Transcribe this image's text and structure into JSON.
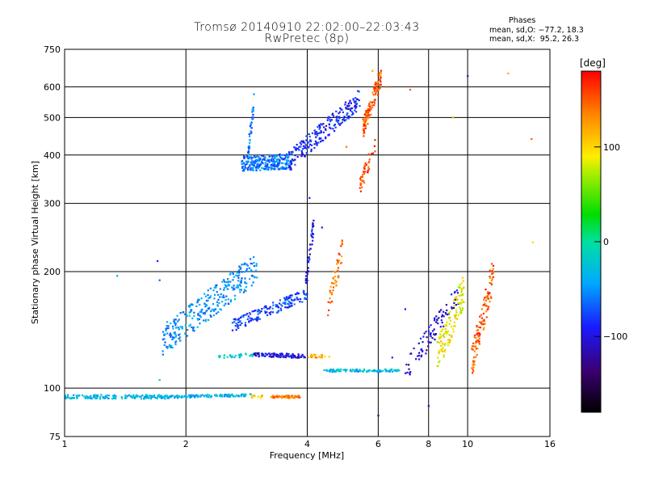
{
  "header": {
    "title": "Tromsø 20140910 22:02:00–22:03:43",
    "subtitle": "RwPretec (8p)"
  },
  "phases_box": {
    "title": "Phases",
    "line1": "mean, sd,O: −77.2, 18.3",
    "line2": "mean, sd,X:  95.2, 26.3"
  },
  "colorbar": {
    "label": "[deg]",
    "ticks": [
      "100",
      "0",
      "−100"
    ],
    "tick_values": [
      100,
      0,
      -100
    ],
    "range": [
      -180,
      180
    ]
  },
  "chart_data": {
    "type": "scatter",
    "title": "Tromsø 20140910 22:02:00–22:03:43",
    "subtitle": "RwPretec (8p)",
    "xlabel": "Frequency [MHz]",
    "ylabel": "Stationary phase Virtual Height [km]",
    "x_scale": "log",
    "y_scale": "log",
    "xlim": [
      1,
      16
    ],
    "ylim": [
      75,
      750
    ],
    "x_ticks": [
      1,
      2,
      4,
      6,
      8,
      10,
      16
    ],
    "x_tick_labels": [
      "1",
      "2",
      "4",
      "6",
      "8",
      "10",
      "16"
    ],
    "y_ticks": [
      75,
      100,
      200,
      300,
      400,
      500,
      600,
      750
    ],
    "y_tick_labels": [
      "75",
      "100",
      "200",
      "300",
      "400",
      "500",
      "600",
      "750"
    ],
    "grid": true,
    "color_scale": "rainbow phase [deg]",
    "traces": [
      {
        "f0": 1.0,
        "f1": 1.8,
        "h0": 95,
        "h1": 95,
        "curv": 0,
        "phase": -30,
        "n": 170,
        "spread": 0.012
      },
      {
        "f0": 1.8,
        "f1": 2.9,
        "h0": 95,
        "h1": 96,
        "curv": 0,
        "phase": -35,
        "n": 120,
        "spread": 0.008
      },
      {
        "f0": 2.9,
        "f1": 3.1,
        "h0": 95,
        "h1": 95,
        "curv": 0,
        "phase": 110,
        "n": 12,
        "spread": 0.008
      },
      {
        "f0": 3.25,
        "f1": 3.85,
        "h0": 95,
        "h1": 95,
        "curv": 0,
        "phase": 140,
        "n": 60,
        "spread": 0.008
      },
      {
        "f0": 1.75,
        "f1": 3.0,
        "h0": 133,
        "h1": 205,
        "curv": 0,
        "phase": -50,
        "n": 300,
        "spread": 0.09
      },
      {
        "f0": 2.6,
        "f1": 4.0,
        "h0": 145,
        "h1": 175,
        "curv": 0,
        "phase": -80,
        "n": 160,
        "spread": 0.035
      },
      {
        "f0": 3.95,
        "f1": 4.15,
        "h0": 180,
        "h1": 265,
        "curv": 0,
        "phase": -95,
        "n": 40,
        "spread": 0.06
      },
      {
        "f0": 4.5,
        "f1": 4.9,
        "h0": 160,
        "h1": 230,
        "curv": 0,
        "phase": 140,
        "n": 50,
        "spread": 0.07
      },
      {
        "f0": 2.35,
        "f1": 2.95,
        "h0": 120,
        "h1": 122,
        "curv": 0,
        "phase": -20,
        "n": 30,
        "spread": 0.01
      },
      {
        "f0": 2.95,
        "f1": 3.95,
        "h0": 122,
        "h1": 121,
        "curv": 0,
        "phase": -100,
        "n": 100,
        "spread": 0.012
      },
      {
        "f0": 4.0,
        "f1": 4.6,
        "h0": 121,
        "h1": 121,
        "curv": 0,
        "phase": 120,
        "n": 25,
        "spread": 0.01
      },
      {
        "f0": 4.4,
        "f1": 6.8,
        "h0": 111,
        "h1": 111,
        "curv": 0,
        "phase": -30,
        "n": 110,
        "spread": 0.008
      },
      {
        "f0": 2.75,
        "f1": 3.6,
        "h0": 380,
        "h1": 385,
        "curv": 0,
        "phase": -60,
        "n": 260,
        "spread": 0.045
      },
      {
        "f0": 3.6,
        "f1": 5.4,
        "h0": 385,
        "h1": 560,
        "curv": 0,
        "phase": -90,
        "n": 220,
        "spread": 0.06
      },
      {
        "f0": 2.85,
        "f1": 2.95,
        "h0": 400,
        "h1": 550,
        "curv": 0,
        "phase": -60,
        "n": 40,
        "spread": 0.06
      },
      {
        "f0": 5.5,
        "f1": 6.1,
        "h0": 470,
        "h1": 640,
        "curv": 0,
        "phase": 150,
        "n": 120,
        "spread": 0.06
      },
      {
        "f0": 5.4,
        "f1": 5.9,
        "h0": 330,
        "h1": 430,
        "curv": 0,
        "phase": 160,
        "n": 40,
        "spread": 0.05
      },
      {
        "f0": 7.0,
        "f1": 9.5,
        "h0": 110,
        "h1": 175,
        "curv": 0,
        "phase": -110,
        "n": 90,
        "spread": 0.07
      },
      {
        "f0": 8.4,
        "f1": 9.8,
        "h0": 120,
        "h1": 180,
        "curv": 0,
        "phase": 90,
        "n": 130,
        "spread": 0.1
      },
      {
        "f0": 10.2,
        "f1": 11.6,
        "h0": 115,
        "h1": 200,
        "curv": 0,
        "phase": 150,
        "n": 110,
        "spread": 0.1
      }
    ],
    "scattered_points": [
      [
        1.35,
        195,
        -40
      ],
      [
        1.7,
        213,
        -90
      ],
      [
        1.72,
        190,
        -70
      ],
      [
        1.72,
        105,
        -20
      ],
      [
        4.05,
        310,
        -90
      ],
      [
        4.35,
        260,
        -110
      ],
      [
        5.0,
        420,
        140
      ],
      [
        6.3,
        600,
        150
      ],
      [
        6.5,
        120,
        -90
      ],
      [
        7.0,
        160,
        -100
      ],
      [
        8.0,
        90,
        -110
      ],
      [
        6.0,
        85,
        -140
      ],
      [
        10.0,
        640,
        -100
      ],
      [
        9.2,
        500,
        110
      ],
      [
        12.6,
        650,
        120
      ],
      [
        14.4,
        440,
        150
      ],
      [
        14.5,
        238,
        100
      ],
      [
        7.2,
        590,
        150
      ],
      [
        5.8,
        660,
        120
      ],
      [
        3.3,
        385,
        -60
      ]
    ]
  }
}
